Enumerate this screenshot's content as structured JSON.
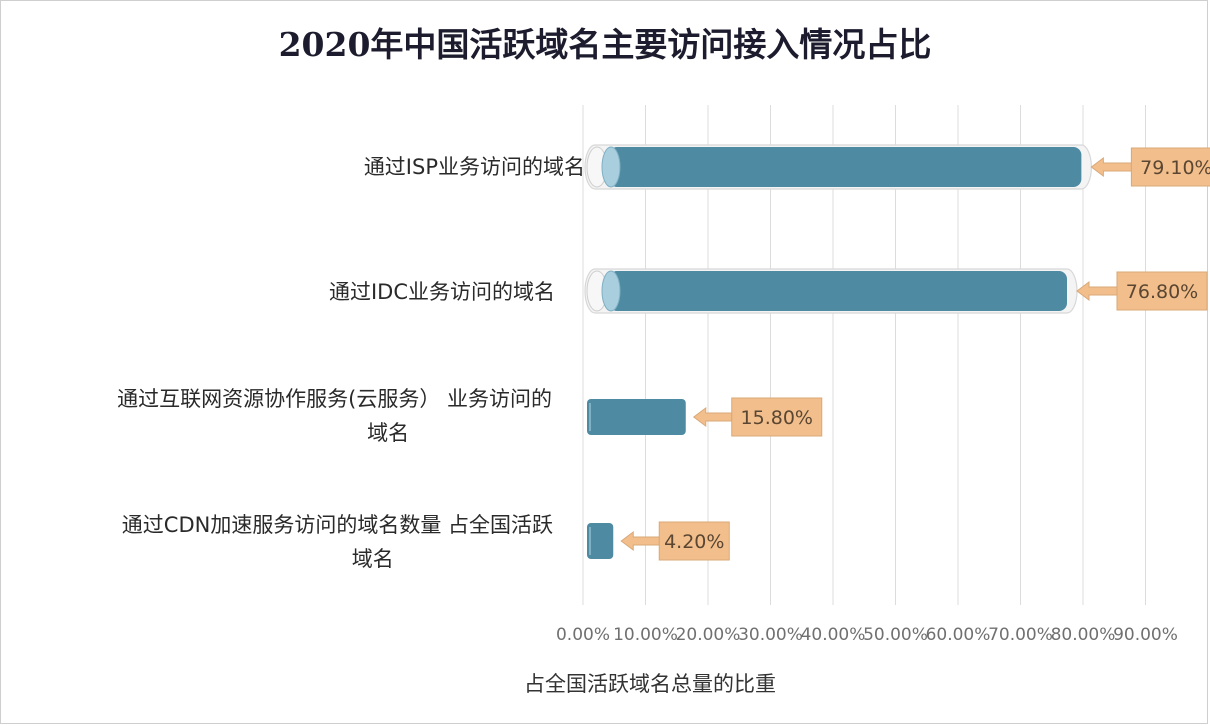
{
  "chart_data": {
    "type": "bar",
    "orientation": "horizontal",
    "title": "2020年中国活跃域名主要访问接入情况占比",
    "xlabel": "占全国活跃域名总量的比重",
    "ylabel": "",
    "xlim": [
      0,
      90
    ],
    "x_ticks": [
      "0.00%",
      "10.00%",
      "20.00%",
      "30.00%",
      "40.00%",
      "50.00%",
      "60.00%",
      "70.00%",
      "80.00%",
      "90.00%"
    ],
    "grid": true,
    "categories": [
      "通过ISP业务访问的域名",
      "通过IDC业务访问的域名",
      "通过互联网资源协作服务(云服务） 业务访问的域名",
      "通过CDN加速服务访问的域名数量 占全国活跃域名"
    ],
    "values": [
      79.1,
      76.8,
      15.8,
      4.2
    ],
    "data_labels": [
      "79.10%",
      "76.80%",
      "15.80%",
      "4.20%"
    ],
    "colors": {
      "bar": "#4e8aa2",
      "bar_end": "#a9cedd",
      "callout": "#f2bf8c",
      "callout_border": "#d9a877",
      "grid": "#dcdcdc"
    }
  },
  "category_label_lines": [
    [
      "通过ISP业务访问的域名"
    ],
    [
      "通过IDC业务访问的域名"
    ],
    [
      "通过互联网资源协作服务(云服务） 业务访问的",
      "域名"
    ],
    [
      "通过CDN加速服务访问的域名数量 占全国活跃",
      "域名"
    ]
  ]
}
